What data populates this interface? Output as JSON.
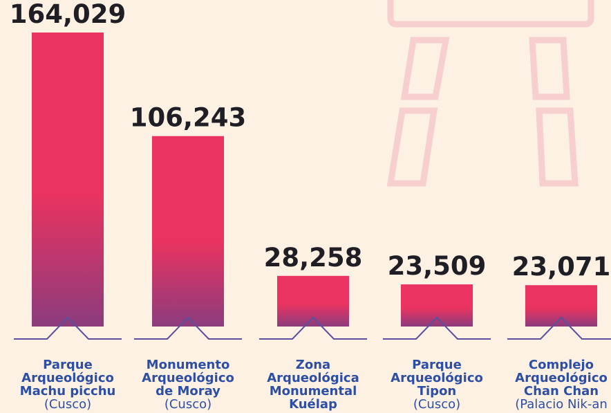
{
  "chart_data": {
    "type": "bar",
    "value_labels": [
      "164,029",
      "106,243",
      "28,258",
      "23,509",
      "23,071"
    ],
    "values": [
      164029,
      106243,
      28258,
      23509,
      23071
    ],
    "categories": [
      [
        "Parque",
        "Arqueológico",
        "Machu picchu"
      ],
      [
        "Monumento",
        "Arqueológico",
        "de Moray"
      ],
      [
        "Zona",
        "Arqueológica",
        "Monumental",
        "Kuélap"
      ],
      [
        "Parque",
        "Arqueológico",
        "Tipon"
      ],
      [
        "Complejo",
        "Arqueológico",
        "Chan Chan"
      ]
    ],
    "subtitles": [
      "(Cusco)",
      "(Cusco)",
      null,
      "(Cusco)",
      "(Palacio Nik-an"
    ],
    "colors": [
      "#ea3360",
      "#8c3c7d"
    ],
    "axis_color": "#5a4f9e"
  }
}
